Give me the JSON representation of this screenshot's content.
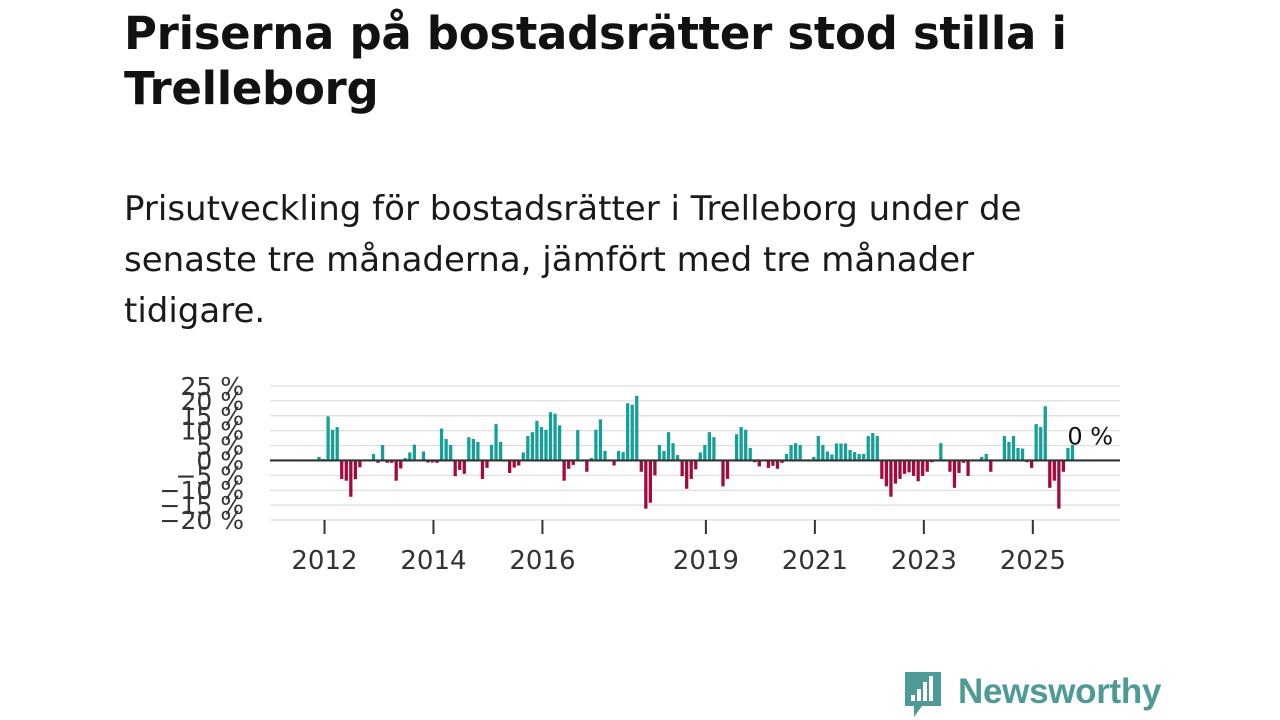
{
  "title": "Priserna på bostadsrätter stod stilla i Trelleborg",
  "subtitle": "Prisutveckling för bostadsrätter i Trelleborg under de senaste tre månaderna, jämfört med tre månader tidigare.",
  "brand": {
    "name": "Newsworthy"
  },
  "colors": {
    "positive": "#14a096",
    "negative": "#a3093e",
    "baseline": "#333333",
    "grid": "#dddddd",
    "axis_text": "#333333",
    "brand": "#4d9a96"
  },
  "chart_data": {
    "type": "bar",
    "title": "Prisutveckling för bostadsrätter i Trelleborg under de senaste tre månaderna, jämfört med tre månader tidigare.",
    "xlabel": "",
    "ylabel": "",
    "x_range": [
      2011,
      2026.6
    ],
    "ylim": [
      -20,
      25
    ],
    "y_ticks": [
      25,
      20,
      15,
      10,
      5,
      0,
      -5,
      -10,
      -15,
      -20
    ],
    "y_tick_labels": [
      "25 %",
      "20 %",
      "15 %",
      "10 %",
      "5 %",
      "0 %",
      "−5 %",
      "−10 %",
      "−15 %",
      "−20 %"
    ],
    "x_ticks": [
      2012,
      2014,
      2016,
      2019,
      2021,
      2023,
      2025
    ],
    "x_tick_labels": [
      "2012",
      "2014",
      "2016",
      "2019",
      "2021",
      "2023",
      "2025"
    ],
    "x_start": 2011.9,
    "x_step": 0.0833,
    "values": [
      1.2,
      0.5,
      14.8,
      10.3,
      11.2,
      -6.2,
      -6.8,
      -12.2,
      -6.3,
      -2.3,
      0,
      0,
      2.2,
      -0.8,
      5.2,
      -0.8,
      -0.8,
      -6.8,
      -2.7,
      0.8,
      2.7,
      5.3,
      0,
      3.0,
      -0.7,
      -0.7,
      -0.8,
      10.7,
      7.2,
      5.2,
      -5.3,
      -3.2,
      -4.5,
      7.8,
      7.2,
      6.2,
      -6.2,
      -2.5,
      5.2,
      12.2,
      6.2,
      0,
      -4.2,
      -2.4,
      -1.7,
      2.7,
      8.2,
      9.5,
      13.3,
      11.2,
      10.3,
      16.2,
      15.7,
      11.8,
      -6.8,
      -2.8,
      -1.5,
      10.2,
      0,
      -3.8,
      0.8,
      10.3,
      13.8,
      3.2,
      0,
      -1.7,
      3.2,
      2.8,
      19.2,
      18.7,
      21.7,
      -3.8,
      -16.2,
      -14.2,
      -5.0,
      5.2,
      3.2,
      9.5,
      5.8,
      1.8,
      -5.3,
      -9.5,
      -6.2,
      -3.0,
      2.7,
      5.2,
      9.5,
      7.8,
      0,
      -8.7,
      -6.2,
      0,
      8.8,
      11.2,
      10.3,
      4.2,
      -0.6,
      -2.0,
      0,
      -2.5,
      -1.8,
      -2.8,
      -0.8,
      2.2,
      5.2,
      5.8,
      5.2,
      0,
      0,
      1.2,
      8.2,
      5.2,
      3.0,
      2.0,
      5.7,
      5.7,
      5.7,
      3.5,
      2.8,
      2.2,
      2.2,
      8.2,
      9.2,
      8.2,
      -6.2,
      -8.7,
      -12.2,
      -7.8,
      -6.2,
      -4.5,
      -4.0,
      -5.2,
      -7.0,
      -5.2,
      -3.8,
      -0.6,
      0,
      5.8,
      0,
      -3.8,
      -9.2,
      -4.2,
      -0.8,
      -5.2,
      0,
      0,
      1.2,
      2.2,
      -3.8,
      0,
      0,
      8.2,
      6.2,
      8.2,
      4.2,
      4.0,
      -0.6,
      -2.5,
      12.2,
      11.2,
      18.2,
      -9.2,
      -6.8,
      -16.2,
      -3.8,
      4.2,
      5.2,
      0
    ],
    "annotation": {
      "text": "0 %",
      "x": 2025.45,
      "y": 0
    }
  }
}
